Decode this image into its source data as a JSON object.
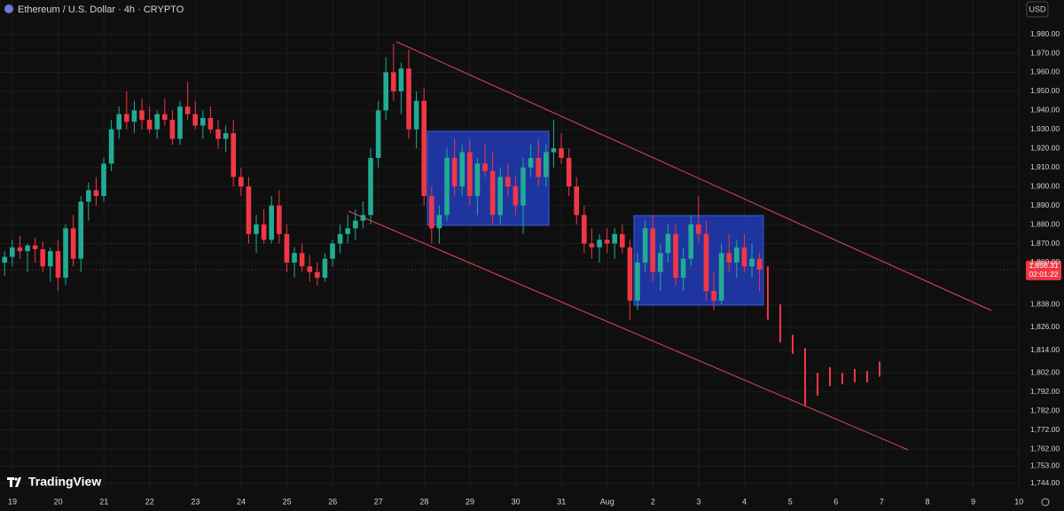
{
  "chart_data": {
    "type": "candlestick",
    "title": "Ethereum / U.S. Dollar · 4h · CRYPTO",
    "currency": "USD",
    "brand": "TradingView",
    "up_color": "#22ab94",
    "down_color": "#f23645",
    "ylim": [
      1742,
      1998
    ],
    "yticks": [
      {
        "value": 1980,
        "label": "1,980.00"
      },
      {
        "value": 1970,
        "label": "1,970.00"
      },
      {
        "value": 1960,
        "label": "1,960.00"
      },
      {
        "value": 1950,
        "label": "1,950.00"
      },
      {
        "value": 1940,
        "label": "1,940.00"
      },
      {
        "value": 1930,
        "label": "1,930.00"
      },
      {
        "value": 1920,
        "label": "1,920.00"
      },
      {
        "value": 1910,
        "label": "1,910.00"
      },
      {
        "value": 1900,
        "label": "1,900.00"
      },
      {
        "value": 1890,
        "label": "1,890.00"
      },
      {
        "value": 1880,
        "label": "1,880.00"
      },
      {
        "value": 1870,
        "label": "1,870.00"
      },
      {
        "value": 1860,
        "label": "1,860.00"
      },
      {
        "value": 1838,
        "label": "1,838.00"
      },
      {
        "value": 1826,
        "label": "1,826.00"
      },
      {
        "value": 1814,
        "label": "1,814.00"
      },
      {
        "value": 1802,
        "label": "1,802.00"
      },
      {
        "value": 1792,
        "label": "1,792.00"
      },
      {
        "value": 1782,
        "label": "1,782.00"
      },
      {
        "value": 1772,
        "label": "1,772.00"
      },
      {
        "value": 1762,
        "label": "1,762.00"
      },
      {
        "value": 1753,
        "label": "1,753.00"
      },
      {
        "value": 1744,
        "label": "1,744.00"
      }
    ],
    "xticks": [
      "19",
      "20",
      "21",
      "22",
      "23",
      "24",
      "25",
      "26",
      "27",
      "28",
      "29",
      "30",
      "31",
      "Aug",
      "2",
      "3",
      "4",
      "5",
      "6",
      "7",
      "8",
      "9",
      "10"
    ],
    "last_price": {
      "value": 1856.31,
      "label": "1,856.31"
    },
    "countdown": "02:01:22",
    "grid": true,
    "ohlc": [
      [
        1860,
        1866,
        1853,
        1863
      ],
      [
        1863,
        1872,
        1858,
        1868
      ],
      [
        1868,
        1874,
        1862,
        1866
      ],
      [
        1866,
        1870,
        1855,
        1869
      ],
      [
        1869,
        1873,
        1860,
        1867
      ],
      [
        1867,
        1871,
        1855,
        1858
      ],
      [
        1858,
        1868,
        1850,
        1866
      ],
      [
        1866,
        1872,
        1845,
        1852
      ],
      [
        1852,
        1880,
        1848,
        1878
      ],
      [
        1878,
        1885,
        1858,
        1862
      ],
      [
        1862,
        1895,
        1855,
        1892
      ],
      [
        1892,
        1902,
        1882,
        1898
      ],
      [
        1898,
        1905,
        1890,
        1895
      ],
      [
        1895,
        1915,
        1892,
        1912
      ],
      [
        1912,
        1935,
        1908,
        1930
      ],
      [
        1930,
        1942,
        1925,
        1938
      ],
      [
        1938,
        1950,
        1930,
        1934
      ],
      [
        1934,
        1945,
        1928,
        1940
      ],
      [
        1940,
        1946,
        1930,
        1935
      ],
      [
        1935,
        1942,
        1928,
        1930
      ],
      [
        1930,
        1940,
        1925,
        1938
      ],
      [
        1938,
        1946,
        1932,
        1935
      ],
      [
        1935,
        1940,
        1922,
        1925
      ],
      [
        1925,
        1945,
        1922,
        1942
      ],
      [
        1942,
        1955,
        1935,
        1938
      ],
      [
        1938,
        1945,
        1930,
        1932
      ],
      [
        1932,
        1940,
        1925,
        1936
      ],
      [
        1936,
        1942,
        1928,
        1930
      ],
      [
        1930,
        1935,
        1920,
        1925
      ],
      [
        1925,
        1932,
        1918,
        1928
      ],
      [
        1928,
        1935,
        1900,
        1905
      ],
      [
        1905,
        1910,
        1895,
        1900
      ],
      [
        1900,
        1905,
        1870,
        1875
      ],
      [
        1875,
        1885,
        1865,
        1880
      ],
      [
        1880,
        1888,
        1870,
        1872
      ],
      [
        1872,
        1895,
        1870,
        1890
      ],
      [
        1890,
        1898,
        1870,
        1875
      ],
      [
        1875,
        1880,
        1855,
        1860
      ],
      [
        1860,
        1868,
        1852,
        1865
      ],
      [
        1865,
        1870,
        1855,
        1858
      ],
      [
        1858,
        1864,
        1850,
        1855
      ],
      [
        1855,
        1860,
        1848,
        1852
      ],
      [
        1852,
        1865,
        1850,
        1862
      ],
      [
        1862,
        1872,
        1858,
        1870
      ],
      [
        1870,
        1880,
        1865,
        1875
      ],
      [
        1875,
        1885,
        1870,
        1878
      ],
      [
        1878,
        1888,
        1872,
        1882
      ],
      [
        1882,
        1892,
        1878,
        1885
      ],
      [
        1885,
        1920,
        1880,
        1915
      ],
      [
        1915,
        1945,
        1910,
        1940
      ],
      [
        1940,
        1968,
        1935,
        1960
      ],
      [
        1960,
        1975,
        1945,
        1950
      ],
      [
        1950,
        1965,
        1938,
        1962
      ],
      [
        1962,
        1972,
        1925,
        1930
      ],
      [
        1930,
        1950,
        1920,
        1945
      ],
      [
        1945,
        1952,
        1890,
        1895
      ],
      [
        1895,
        1900,
        1870,
        1878
      ],
      [
        1878,
        1890,
        1870,
        1885
      ],
      [
        1885,
        1920,
        1882,
        1915
      ],
      [
        1915,
        1925,
        1895,
        1900
      ],
      [
        1900,
        1922,
        1895,
        1918
      ],
      [
        1918,
        1925,
        1890,
        1895
      ],
      [
        1895,
        1915,
        1885,
        1912
      ],
      [
        1912,
        1922,
        1905,
        1908
      ],
      [
        1908,
        1918,
        1880,
        1885
      ],
      [
        1885,
        1910,
        1880,
        1905
      ],
      [
        1905,
        1912,
        1895,
        1900
      ],
      [
        1900,
        1905,
        1885,
        1890
      ],
      [
        1890,
        1915,
        1875,
        1910
      ],
      [
        1910,
        1922,
        1905,
        1915
      ],
      [
        1915,
        1925,
        1900,
        1905
      ],
      [
        1905,
        1922,
        1900,
        1918
      ],
      [
        1918,
        1935,
        1910,
        1920
      ],
      [
        1920,
        1928,
        1912,
        1915
      ],
      [
        1915,
        1920,
        1895,
        1900
      ],
      [
        1900,
        1905,
        1880,
        1885
      ],
      [
        1885,
        1890,
        1865,
        1870
      ],
      [
        1870,
        1878,
        1862,
        1868
      ],
      [
        1868,
        1875,
        1860,
        1872
      ],
      [
        1872,
        1878,
        1865,
        1870
      ],
      [
        1870,
        1878,
        1862,
        1875
      ],
      [
        1875,
        1880,
        1865,
        1868
      ],
      [
        1868,
        1872,
        1830,
        1840
      ],
      [
        1840,
        1865,
        1835,
        1860
      ],
      [
        1860,
        1882,
        1855,
        1878
      ],
      [
        1878,
        1885,
        1850,
        1855
      ],
      [
        1855,
        1870,
        1845,
        1865
      ],
      [
        1865,
        1880,
        1860,
        1875
      ],
      [
        1875,
        1880,
        1848,
        1852
      ],
      [
        1852,
        1868,
        1845,
        1862
      ],
      [
        1862,
        1885,
        1858,
        1880
      ],
      [
        1880,
        1895,
        1870,
        1875
      ],
      [
        1875,
        1882,
        1840,
        1845
      ],
      [
        1845,
        1855,
        1835,
        1840
      ],
      [
        1840,
        1870,
        1838,
        1865
      ],
      [
        1865,
        1875,
        1855,
        1860
      ],
      [
        1860,
        1872,
        1852,
        1868
      ],
      [
        1868,
        1875,
        1855,
        1858
      ],
      [
        1858,
        1870,
        1852,
        1862
      ],
      [
        1862,
        1865,
        1845,
        1856.31
      ]
    ],
    "projection": [
      [
        1858,
        1830
      ],
      [
        1838,
        1818
      ],
      [
        1822,
        1812
      ],
      [
        1815,
        1785
      ],
      [
        1802,
        1790
      ],
      [
        1805,
        1795
      ],
      [
        1802,
        1796
      ],
      [
        1804,
        1797
      ],
      [
        1803,
        1797
      ],
      [
        1808,
        1800
      ]
    ]
  }
}
